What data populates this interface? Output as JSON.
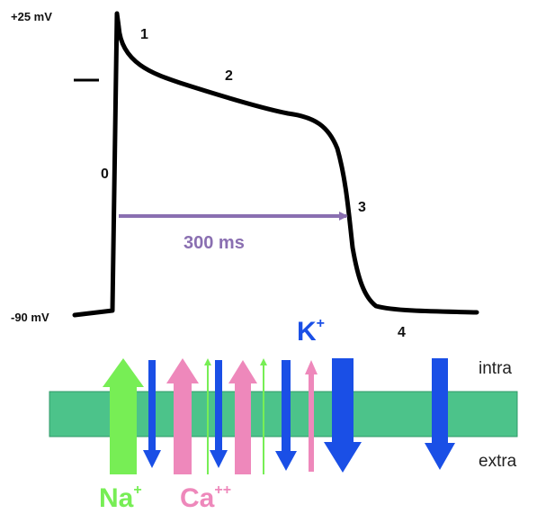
{
  "colors": {
    "trace": "#000000",
    "duration_arrow": "#8a6fb1",
    "membrane": "#4cc38a",
    "na": "#77ee55",
    "ca": "#ee88bb",
    "k": "#1a4fe6"
  },
  "voltage_labels": {
    "top": "+25 mV",
    "bottom": "-90 mV"
  },
  "phases": [
    "0",
    "1",
    "2",
    "3",
    "4"
  ],
  "duration_label": "300 ms",
  "membrane": {
    "intra": "intra",
    "extra": "extra"
  },
  "ions": {
    "na": {
      "symbol": "Na",
      "charge": "+"
    },
    "ca": {
      "symbol": "Ca",
      "charge": "++"
    },
    "k": {
      "symbol": "K",
      "charge": "+"
    }
  },
  "icons": [
    "action-potential-trace",
    "duration-arrow",
    "ion-flux-arrow"
  ]
}
